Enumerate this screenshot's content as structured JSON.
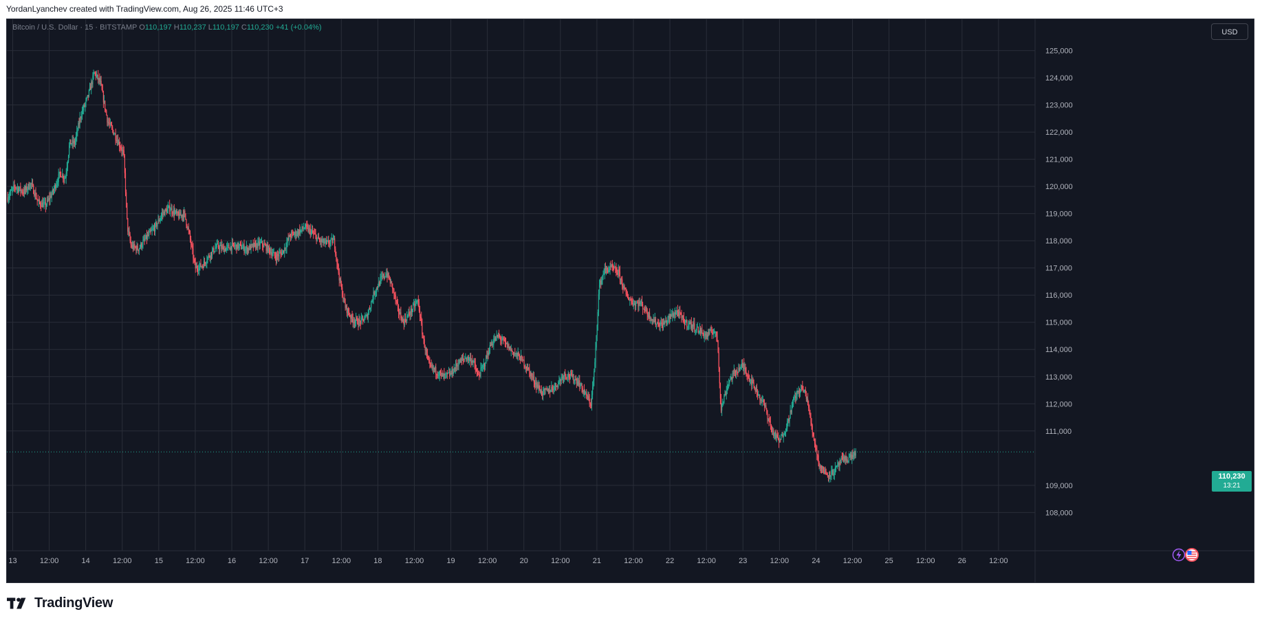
{
  "caption": "YordanLyanchev created with TradingView.com, Aug 26, 2025 11:46 UTC+3",
  "legend": {
    "symbol": "Bitcoin / U.S. Dollar · 15 · BITSTAMP",
    "o_label": "O",
    "o_value": "110,197",
    "h_label": "H",
    "h_value": "110,237",
    "l_label": "L",
    "l_value": "110,197",
    "c_label": "C",
    "c_value": "110,230",
    "change": "+41 (+0.04%)"
  },
  "currency": "USD",
  "last_price": {
    "price": "110,230",
    "countdown": "13:21"
  },
  "brand": "TradingView",
  "colors": {
    "background": "#131722",
    "grid": "#2a2e39",
    "up": "#22ab94",
    "down": "#f7525f",
    "badge": "#22ab94"
  },
  "icons": [
    "lightning-event-icon",
    "us-flag-event-icon"
  ],
  "chart_data": {
    "type": "candlestick",
    "timeframe": "15",
    "y_range": [
      107300,
      125900
    ],
    "y_ticks": [
      {
        "value": 125000,
        "label": "125,000"
      },
      {
        "value": 124000,
        "label": "124,000"
      },
      {
        "value": 123000,
        "label": "123,000"
      },
      {
        "value": 122000,
        "label": "122,000"
      },
      {
        "value": 121000,
        "label": "121,000"
      },
      {
        "value": 120000,
        "label": "120,000"
      },
      {
        "value": 119000,
        "label": "119,000"
      },
      {
        "value": 118000,
        "label": "118,000"
      },
      {
        "value": 117000,
        "label": "117,000"
      },
      {
        "value": 116000,
        "label": "116,000"
      },
      {
        "value": 115000,
        "label": "115,000"
      },
      {
        "value": 114000,
        "label": "114,000"
      },
      {
        "value": 113000,
        "label": "113,000"
      },
      {
        "value": 112000,
        "label": "112,000"
      },
      {
        "value": 111000,
        "label": "111,000"
      },
      {
        "value": 109000,
        "label": "109,000"
      },
      {
        "value": 108000,
        "label": "108,000"
      }
    ],
    "x_range": [
      12.92,
      27.0
    ],
    "x_ticks": [
      {
        "value": 13.0,
        "label": "13"
      },
      {
        "value": 13.5,
        "label": "12:00"
      },
      {
        "value": 14.0,
        "label": "14"
      },
      {
        "value": 14.5,
        "label": "12:00"
      },
      {
        "value": 15.0,
        "label": "15"
      },
      {
        "value": 15.5,
        "label": "12:00"
      },
      {
        "value": 16.0,
        "label": "16"
      },
      {
        "value": 16.5,
        "label": "12:00"
      },
      {
        "value": 17.0,
        "label": "17"
      },
      {
        "value": 17.5,
        "label": "12:00"
      },
      {
        "value": 18.0,
        "label": "18"
      },
      {
        "value": 18.5,
        "label": "12:00"
      },
      {
        "value": 19.0,
        "label": "19"
      },
      {
        "value": 19.5,
        "label": "12:00"
      },
      {
        "value": 20.0,
        "label": "20"
      },
      {
        "value": 20.5,
        "label": "12:00"
      },
      {
        "value": 21.0,
        "label": "21"
      },
      {
        "value": 21.5,
        "label": "12:00"
      },
      {
        "value": 22.0,
        "label": "22"
      },
      {
        "value": 22.5,
        "label": "12:00"
      },
      {
        "value": 23.0,
        "label": "23"
      },
      {
        "value": 23.5,
        "label": "12:00"
      },
      {
        "value": 24.0,
        "label": "24"
      },
      {
        "value": 24.5,
        "label": "12:00"
      },
      {
        "value": 25.0,
        "label": "25"
      },
      {
        "value": 25.5,
        "label": "12:00"
      },
      {
        "value": 26.0,
        "label": "26"
      },
      {
        "value": 26.5,
        "label": "12:00"
      }
    ],
    "last_close": 110230,
    "grid": true,
    "price_path": [
      [
        12.93,
        119600
      ],
      [
        13.03,
        120000
      ],
      [
        13.15,
        119800
      ],
      [
        13.25,
        120100
      ],
      [
        13.35,
        119400
      ],
      [
        13.45,
        119300
      ],
      [
        13.55,
        119800
      ],
      [
        13.65,
        120500
      ],
      [
        13.72,
        120300
      ],
      [
        13.78,
        121600
      ],
      [
        13.85,
        121600
      ],
      [
        13.93,
        122600
      ],
      [
        14.03,
        123300
      ],
      [
        14.12,
        124200
      ],
      [
        14.2,
        123800
      ],
      [
        14.3,
        122400
      ],
      [
        14.4,
        121900
      ],
      [
        14.52,
        121200
      ],
      [
        14.57,
        118500
      ],
      [
        14.62,
        117800
      ],
      [
        14.72,
        117700
      ],
      [
        14.83,
        118100
      ],
      [
        14.95,
        118500
      ],
      [
        15.05,
        119000
      ],
      [
        15.15,
        119200
      ],
      [
        15.27,
        118900
      ],
      [
        15.35,
        119000
      ],
      [
        15.42,
        118200
      ],
      [
        15.5,
        117000
      ],
      [
        15.6,
        117100
      ],
      [
        15.7,
        117500
      ],
      [
        15.8,
        117800
      ],
      [
        15.9,
        117700
      ],
      [
        16.0,
        117800
      ],
      [
        16.1,
        117800
      ],
      [
        16.2,
        117700
      ],
      [
        16.3,
        117800
      ],
      [
        16.4,
        117900
      ],
      [
        16.5,
        117700
      ],
      [
        16.6,
        117400
      ],
      [
        16.7,
        117600
      ],
      [
        16.8,
        118200
      ],
      [
        16.9,
        118300
      ],
      [
        17.0,
        118500
      ],
      [
        17.1,
        118300
      ],
      [
        17.2,
        118000
      ],
      [
        17.3,
        117900
      ],
      [
        17.4,
        118000
      ],
      [
        17.48,
        116500
      ],
      [
        17.55,
        115600
      ],
      [
        17.65,
        115100
      ],
      [
        17.75,
        115000
      ],
      [
        17.85,
        115200
      ],
      [
        17.95,
        116100
      ],
      [
        18.05,
        116600
      ],
      [
        18.12,
        116800
      ],
      [
        18.2,
        116300
      ],
      [
        18.27,
        115500
      ],
      [
        18.35,
        115000
      ],
      [
        18.45,
        115400
      ],
      [
        18.55,
        115800
      ],
      [
        18.62,
        114400
      ],
      [
        18.7,
        113400
      ],
      [
        18.8,
        113200
      ],
      [
        18.9,
        113000
      ],
      [
        19.0,
        113100
      ],
      [
        19.1,
        113500
      ],
      [
        19.2,
        113700
      ],
      [
        19.3,
        113600
      ],
      [
        19.37,
        113000
      ],
      [
        19.45,
        113400
      ],
      [
        19.55,
        114200
      ],
      [
        19.65,
        114500
      ],
      [
        19.75,
        114200
      ],
      [
        19.85,
        113900
      ],
      [
        19.95,
        113700
      ],
      [
        20.05,
        113300
      ],
      [
        20.15,
        112800
      ],
      [
        20.25,
        112400
      ],
      [
        20.35,
        112500
      ],
      [
        20.45,
        112700
      ],
      [
        20.55,
        113100
      ],
      [
        20.65,
        113000
      ],
      [
        20.75,
        112800
      ],
      [
        20.85,
        112300
      ],
      [
        20.92,
        112000
      ],
      [
        20.97,
        113400
      ],
      [
        21.03,
        116300
      ],
      [
        21.1,
        116900
      ],
      [
        21.2,
        117000
      ],
      [
        21.3,
        116800
      ],
      [
        21.4,
        116000
      ],
      [
        21.5,
        115700
      ],
      [
        21.6,
        115700
      ],
      [
        21.7,
        115300
      ],
      [
        21.8,
        115000
      ],
      [
        21.9,
        114900
      ],
      [
        22.0,
        115200
      ],
      [
        22.1,
        115400
      ],
      [
        22.2,
        115000
      ],
      [
        22.3,
        114900
      ],
      [
        22.4,
        114700
      ],
      [
        22.5,
        114500
      ],
      [
        22.6,
        114700
      ],
      [
        22.65,
        114400
      ],
      [
        22.7,
        111800
      ],
      [
        22.8,
        112800
      ],
      [
        22.9,
        113200
      ],
      [
        23.0,
        113400
      ],
      [
        23.1,
        112900
      ],
      [
        23.2,
        112400
      ],
      [
        23.3,
        111900
      ],
      [
        23.4,
        111000
      ],
      [
        23.5,
        110600
      ],
      [
        23.6,
        111200
      ],
      [
        23.7,
        112200
      ],
      [
        23.8,
        112600
      ],
      [
        23.87,
        112300
      ],
      [
        23.95,
        111000
      ],
      [
        24.05,
        109700
      ],
      [
        24.15,
        109400
      ],
      [
        24.25,
        109500
      ],
      [
        24.35,
        109900
      ],
      [
        24.45,
        110000
      ],
      [
        24.55,
        110200
      ]
    ]
  }
}
